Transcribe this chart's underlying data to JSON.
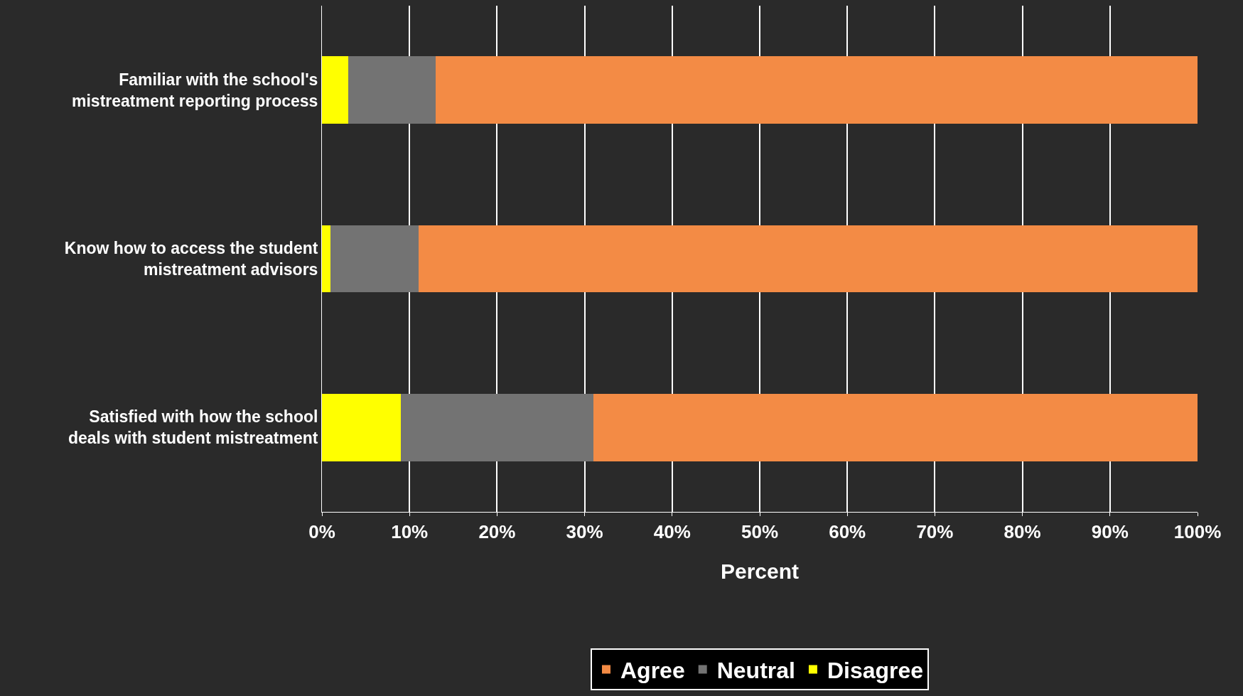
{
  "chart_data": {
    "type": "bar",
    "orientation": "horizontal",
    "stacked": true,
    "xlabel": "Percent",
    "categories": [
      "Familiar with the school's mistreatment reporting process",
      "Know how to access the student mistreatment advisors",
      "Satisfied with how the school deals with student mistreatment"
    ],
    "series": [
      {
        "name": "Disagree",
        "color": "#ffff00",
        "values": [
          3,
          1,
          9
        ]
      },
      {
        "name": "Neutral",
        "color": "#737373",
        "values": [
          10,
          10,
          22
        ]
      },
      {
        "name": "Agree",
        "color": "#f38b45",
        "values": [
          87,
          89,
          69
        ]
      }
    ],
    "xlim": [
      0,
      100
    ],
    "xticks": [
      {
        "value": 0,
        "label": "0%"
      },
      {
        "value": 10,
        "label": "10%"
      },
      {
        "value": 20,
        "label": "20%"
      },
      {
        "value": 30,
        "label": "30%"
      },
      {
        "value": 40,
        "label": "40%"
      },
      {
        "value": 50,
        "label": "50%"
      },
      {
        "value": 60,
        "label": "60%"
      },
      {
        "value": 70,
        "label": "70%"
      },
      {
        "value": 80,
        "label": "80%"
      },
      {
        "value": 90,
        "label": "90%"
      },
      {
        "value": 100,
        "label": "100%"
      }
    ],
    "grid": "x",
    "legend": "bottom"
  }
}
